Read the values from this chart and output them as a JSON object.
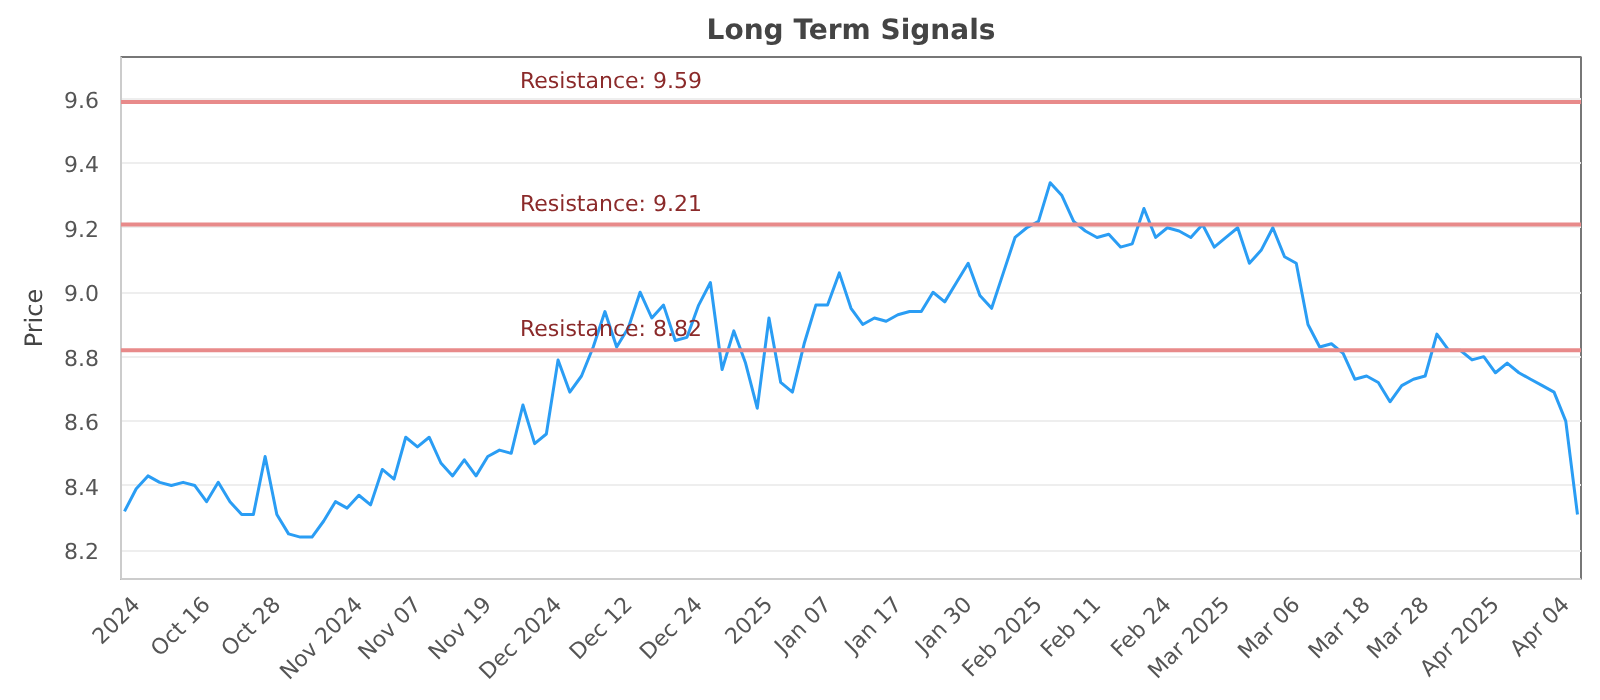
{
  "chart_data": {
    "type": "line",
    "title": "Long Term Signals",
    "ylabel": "Price",
    "categories": [
      null,
      "2024",
      null,
      null,
      null,
      null,
      null,
      "Oct 16",
      null,
      null,
      null,
      null,
      null,
      "Oct 28",
      null,
      null,
      null,
      null,
      null,
      null,
      "Nov 2024",
      null,
      null,
      null,
      null,
      "Nov 07",
      null,
      null,
      null,
      null,
      null,
      "Nov 19",
      null,
      null,
      null,
      null,
      null,
      "Dec 2024",
      null,
      null,
      null,
      null,
      null,
      "Dec 12",
      null,
      null,
      null,
      null,
      null,
      "Dec 24",
      null,
      null,
      null,
      null,
      null,
      "2025",
      null,
      null,
      null,
      null,
      "Jan 07",
      null,
      null,
      null,
      null,
      null,
      "Jan 17",
      null,
      null,
      null,
      null,
      null,
      "Jan 30",
      null,
      null,
      null,
      null,
      null,
      "Feb 2025",
      null,
      null,
      null,
      null,
      "Feb 11",
      null,
      null,
      null,
      null,
      null,
      "Feb 24",
      null,
      null,
      null,
      null,
      "Mar 2025",
      null,
      null,
      null,
      null,
      null,
      "Mar 06",
      null,
      null,
      null,
      null,
      null,
      "Mar 18",
      null,
      null,
      null,
      null,
      "Mar 28",
      null,
      null,
      null,
      null,
      null,
      "Apr 2025",
      null,
      null,
      null,
      null,
      null,
      "Apr 04",
      null
    ],
    "series": [
      {
        "color": "#2a9df4",
        "values": [
          8.32,
          8.39,
          8.43,
          8.41,
          8.4,
          8.41,
          8.4,
          8.35,
          8.41,
          8.35,
          8.31,
          8.31,
          8.49,
          8.31,
          8.25,
          8.24,
          8.24,
          8.29,
          8.35,
          8.33,
          8.37,
          8.34,
          8.45,
          8.42,
          8.55,
          8.52,
          8.55,
          8.47,
          8.43,
          8.48,
          8.43,
          8.49,
          8.51,
          8.5,
          8.65,
          8.53,
          8.56,
          8.79,
          8.69,
          8.74,
          8.83,
          8.94,
          8.83,
          8.89,
          9.0,
          8.92,
          8.96,
          8.85,
          8.86,
          8.96,
          9.03,
          8.76,
          8.88,
          8.78,
          8.64,
          8.92,
          8.72,
          8.69,
          8.84,
          8.96,
          8.96,
          9.06,
          8.95,
          8.9,
          8.92,
          8.91,
          8.93,
          8.94,
          8.94,
          9.0,
          8.97,
          9.03,
          9.09,
          8.99,
          8.95,
          9.06,
          9.17,
          9.2,
          9.22,
          9.34,
          9.3,
          9.22,
          9.19,
          9.17,
          9.18,
          9.14,
          9.15,
          9.26,
          9.17,
          9.2,
          9.19,
          9.17,
          9.21,
          9.14,
          9.17,
          9.2,
          9.09,
          9.13,
          9.2,
          9.11,
          9.09,
          8.9,
          8.83,
          8.84,
          8.81,
          8.73,
          8.74,
          8.72,
          8.66,
          8.71,
          8.73,
          8.74,
          8.87,
          8.82,
          8.82,
          8.79,
          8.8,
          8.75,
          8.78,
          8.75,
          8.73,
          8.71,
          8.69,
          8.6,
          8.31
        ]
      }
    ],
    "ylim": [
      8.11,
      9.73
    ],
    "yticks": [
      8.2,
      8.4,
      8.6,
      8.8,
      {
        "value": 9.0,
        "label": "9.0"
      },
      9.2,
      9.4,
      9.6
    ],
    "ref_lines": [
      {
        "axis": "y",
        "value": 9.59,
        "label": "Resistance: 9.59",
        "color": "#e88a8a"
      },
      {
        "axis": "y",
        "value": 9.21,
        "label": "Resistance: 9.21",
        "color": "#e88a8a"
      },
      {
        "axis": "y",
        "value": 8.82,
        "label": "Resistance: 8.82",
        "color": "#e88a8a"
      }
    ],
    "grid": "y",
    "marker": "none",
    "line_style": "solid"
  }
}
